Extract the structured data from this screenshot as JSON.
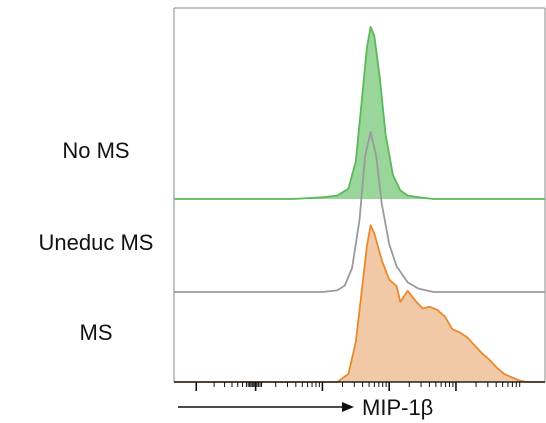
{
  "chart_data": {
    "type": "area",
    "subtype": "staggered-histogram-overlay",
    "xlabel": "MIP-1β",
    "grid": false,
    "x_scale": "log",
    "x_ticks_labeled": false,
    "series": [
      {
        "name": "No MS",
        "color": "#5ab95a",
        "fill": "#8fd08f",
        "profile": [
          [
            0.0,
            0.0
          ],
          [
            0.24,
            0.0
          ],
          [
            0.32,
            0.0
          ],
          [
            0.4,
            0.01
          ],
          [
            0.44,
            0.02
          ],
          [
            0.47,
            0.06
          ],
          [
            0.49,
            0.22
          ],
          [
            0.505,
            0.55
          ],
          [
            0.52,
            0.88
          ],
          [
            0.53,
            1.0
          ],
          [
            0.54,
            0.95
          ],
          [
            0.555,
            0.7
          ],
          [
            0.57,
            0.38
          ],
          [
            0.59,
            0.14
          ],
          [
            0.61,
            0.05
          ],
          [
            0.63,
            0.02
          ],
          [
            0.66,
            0.01
          ],
          [
            0.7,
            0.0
          ],
          [
            1.0,
            0.0
          ]
        ]
      },
      {
        "name": "Uneduc MS",
        "color": "#9a9a9a",
        "fill": "none",
        "profile": [
          [
            0.0,
            0.0
          ],
          [
            0.4,
            0.0
          ],
          [
            0.44,
            0.01
          ],
          [
            0.46,
            0.04
          ],
          [
            0.48,
            0.15
          ],
          [
            0.5,
            0.45
          ],
          [
            0.515,
            0.85
          ],
          [
            0.53,
            1.0
          ],
          [
            0.545,
            0.85
          ],
          [
            0.56,
            0.55
          ],
          [
            0.58,
            0.3
          ],
          [
            0.6,
            0.16
          ],
          [
            0.63,
            0.06
          ],
          [
            0.66,
            0.02
          ],
          [
            0.7,
            0.0
          ],
          [
            1.0,
            0.0
          ]
        ]
      },
      {
        "name": "MS",
        "color": "#e8892f",
        "fill": "#f1c39c",
        "profile": [
          [
            0.0,
            0.0
          ],
          [
            0.44,
            0.0
          ],
          [
            0.47,
            0.05
          ],
          [
            0.49,
            0.25
          ],
          [
            0.505,
            0.55
          ],
          [
            0.52,
            0.85
          ],
          [
            0.53,
            0.98
          ],
          [
            0.54,
            0.93
          ],
          [
            0.56,
            0.76
          ],
          [
            0.58,
            0.64
          ],
          [
            0.6,
            0.6
          ],
          [
            0.61,
            0.5
          ],
          [
            0.63,
            0.57
          ],
          [
            0.65,
            0.51
          ],
          [
            0.67,
            0.46
          ],
          [
            0.69,
            0.47
          ],
          [
            0.71,
            0.45
          ],
          [
            0.73,
            0.41
          ],
          [
            0.75,
            0.33
          ],
          [
            0.77,
            0.31
          ],
          [
            0.79,
            0.28
          ],
          [
            0.81,
            0.23
          ],
          [
            0.83,
            0.18
          ],
          [
            0.85,
            0.14
          ],
          [
            0.87,
            0.09
          ],
          [
            0.89,
            0.05
          ],
          [
            0.91,
            0.03
          ],
          [
            0.93,
            0.01
          ],
          [
            0.95,
            0.0
          ],
          [
            1.0,
            0.0
          ]
        ]
      }
    ]
  }
}
